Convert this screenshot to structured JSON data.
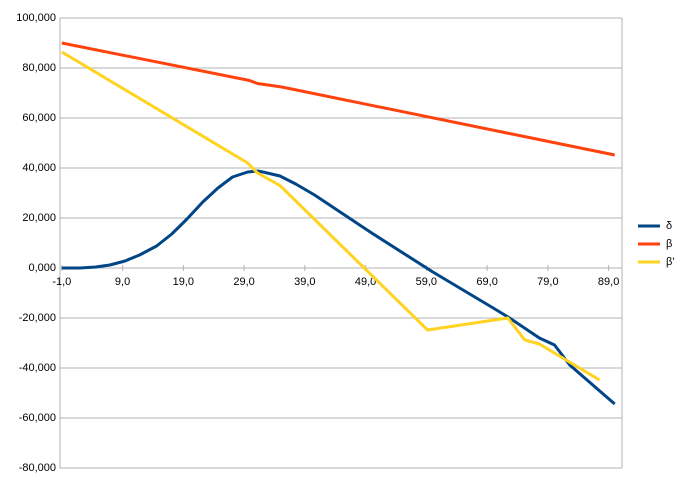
{
  "chart_data": {
    "type": "line",
    "xlim": [
      -1.3,
      91.2
    ],
    "ylim": [
      -80,
      100
    ],
    "xticks": [
      {
        "value": -1,
        "label": "-1,0"
      },
      {
        "value": 9,
        "label": "9,0"
      },
      {
        "value": 19,
        "label": "19,0"
      },
      {
        "value": 29,
        "label": "29,0"
      },
      {
        "value": 39,
        "label": "39,0"
      },
      {
        "value": 49,
        "label": "49,0"
      },
      {
        "value": 59,
        "label": "59,0"
      },
      {
        "value": 69,
        "label": "69,0"
      },
      {
        "value": 79,
        "label": "79,0"
      },
      {
        "value": 89,
        "label": "89,0"
      }
    ],
    "yticks": [
      {
        "value": -80,
        "label": "-80,000"
      },
      {
        "value": -60,
        "label": "-60,000"
      },
      {
        "value": -40,
        "label": "-40,000"
      },
      {
        "value": -20,
        "label": "-20,000"
      },
      {
        "value": 0,
        "label": "0,000"
      },
      {
        "value": 20,
        "label": "20,000"
      },
      {
        "value": 40,
        "label": "40,000"
      },
      {
        "value": 60,
        "label": "60,000"
      },
      {
        "value": 80,
        "label": "80,000"
      },
      {
        "value": 100,
        "label": "100,000"
      }
    ],
    "grid": true,
    "legend": "right",
    "series": [
      {
        "name": "δ",
        "color": "#004586",
        "x": [
          -1,
          2,
          4.6,
          6.9,
          9.4,
          11.8,
          14.6,
          17.1,
          19.6,
          22.2,
          24.7,
          27.1,
          29.6,
          31.2,
          32.1,
          34.9,
          37.5,
          40.6,
          50,
          60,
          70,
          72.7,
          77.6,
          80.1,
          82.6,
          90
        ],
        "values": [
          0,
          0,
          0.4,
          1.2,
          2.8,
          5.2,
          8.8,
          13.6,
          19.6,
          26.4,
          32,
          36.4,
          38.4,
          38.8,
          38.4,
          36.8,
          33.6,
          29.2,
          14,
          -1.5,
          -16,
          -20,
          -28,
          -30.8,
          -38.8,
          -54.4
        ]
      },
      {
        "name": "β",
        "color": "#ff420e",
        "x": [
          -1,
          29.9,
          31.2,
          35.2,
          90
        ],
        "values": [
          90,
          75,
          73.8,
          72.4,
          45.2
        ]
      },
      {
        "name": "β'",
        "color": "#ffd320",
        "x": [
          -1,
          29.6,
          31.2,
          34.9,
          59.2,
          72.4,
          75.2,
          77.6,
          87.5
        ],
        "values": [
          86.4,
          42,
          38,
          33,
          -24.8,
          -20,
          -28.8,
          -30.4,
          -44.8
        ]
      }
    ]
  }
}
